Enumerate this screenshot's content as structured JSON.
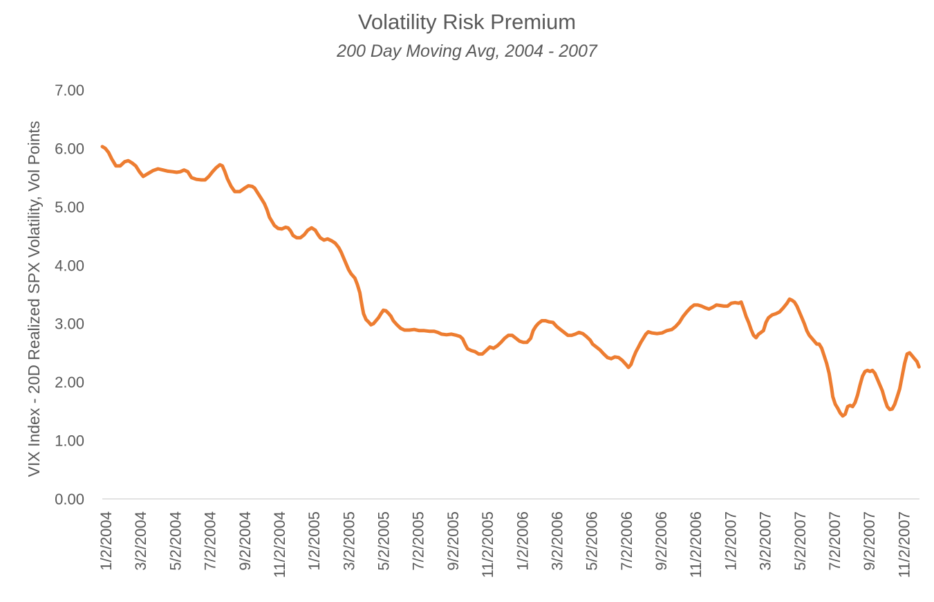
{
  "chart_data": {
    "type": "line",
    "title": "Volatility Risk Premium",
    "subtitle": "200 Day Moving Avg, 2004 - 2007",
    "xlabel": "",
    "ylabel": "VIX Index - 20D Realized SPX Volatility, Vol Points",
    "ylim": [
      0,
      7
    ],
    "yticks": [
      "0.00",
      "1.00",
      "2.00",
      "3.00",
      "4.00",
      "5.00",
      "6.00",
      "7.00"
    ],
    "xticks": [
      "1/2/2004",
      "3/2/2004",
      "5/2/2004",
      "7/2/2004",
      "9/2/2004",
      "11/2/2004",
      "1/2/2005",
      "3/2/2005",
      "5/2/2005",
      "7/2/2005",
      "9/2/2005",
      "11/2/2005",
      "1/2/2006",
      "3/2/2006",
      "5/2/2006",
      "7/2/2006",
      "9/2/2006",
      "11/2/2006",
      "1/2/2007",
      "3/2/2007",
      "5/2/2007",
      "7/2/2007",
      "9/2/2007",
      "11/2/2007"
    ],
    "grid": false,
    "line_color": "#ED7D31",
    "series": [
      {
        "values": [
          [
            0.0,
            6.03
          ],
          [
            0.12,
            6.0
          ],
          [
            0.25,
            5.93
          ],
          [
            0.38,
            5.82
          ],
          [
            0.55,
            5.7
          ],
          [
            0.72,
            5.7
          ],
          [
            0.9,
            5.77
          ],
          [
            1.05,
            5.79
          ],
          [
            1.2,
            5.75
          ],
          [
            1.35,
            5.7
          ],
          [
            1.5,
            5.6
          ],
          [
            1.65,
            5.52
          ],
          [
            1.85,
            5.57
          ],
          [
            2.05,
            5.62
          ],
          [
            2.25,
            5.65
          ],
          [
            2.45,
            5.63
          ],
          [
            2.65,
            5.61
          ],
          [
            2.85,
            5.6
          ],
          [
            3.0,
            5.59
          ],
          [
            3.15,
            5.6
          ],
          [
            3.3,
            5.63
          ],
          [
            3.45,
            5.6
          ],
          [
            3.6,
            5.5
          ],
          [
            3.8,
            5.47
          ],
          [
            4.0,
            5.46
          ],
          [
            4.15,
            5.46
          ],
          [
            4.3,
            5.52
          ],
          [
            4.45,
            5.6
          ],
          [
            4.6,
            5.67
          ],
          [
            4.75,
            5.72
          ],
          [
            4.85,
            5.7
          ],
          [
            4.95,
            5.6
          ],
          [
            5.05,
            5.48
          ],
          [
            5.2,
            5.35
          ],
          [
            5.35,
            5.26
          ],
          [
            5.55,
            5.26
          ],
          [
            5.75,
            5.32
          ],
          [
            5.9,
            5.36
          ],
          [
            6.05,
            5.35
          ],
          [
            6.15,
            5.32
          ],
          [
            6.3,
            5.22
          ],
          [
            6.45,
            5.12
          ],
          [
            6.55,
            5.05
          ],
          [
            6.65,
            4.95
          ],
          [
            6.75,
            4.82
          ],
          [
            6.85,
            4.75
          ],
          [
            6.95,
            4.68
          ],
          [
            7.1,
            4.63
          ],
          [
            7.25,
            4.62
          ],
          [
            7.4,
            4.65
          ],
          [
            7.5,
            4.64
          ],
          [
            7.6,
            4.59
          ],
          [
            7.7,
            4.51
          ],
          [
            7.85,
            4.47
          ],
          [
            8.0,
            4.47
          ],
          [
            8.15,
            4.52
          ],
          [
            8.3,
            4.6
          ],
          [
            8.45,
            4.64
          ],
          [
            8.6,
            4.6
          ],
          [
            8.7,
            4.53
          ],
          [
            8.8,
            4.47
          ],
          [
            8.95,
            4.43
          ],
          [
            9.1,
            4.45
          ],
          [
            9.25,
            4.42
          ],
          [
            9.4,
            4.38
          ],
          [
            9.55,
            4.3
          ],
          [
            9.65,
            4.22
          ],
          [
            9.75,
            4.12
          ],
          [
            9.85,
            4.02
          ],
          [
            9.95,
            3.92
          ],
          [
            10.05,
            3.85
          ],
          [
            10.2,
            3.78
          ],
          [
            10.3,
            3.67
          ],
          [
            10.4,
            3.53
          ],
          [
            10.45,
            3.4
          ],
          [
            10.5,
            3.28
          ],
          [
            10.55,
            3.17
          ],
          [
            10.65,
            3.07
          ],
          [
            10.75,
            3.03
          ],
          [
            10.85,
            2.98
          ],
          [
            10.95,
            3.0
          ],
          [
            11.05,
            3.05
          ],
          [
            11.15,
            3.1
          ],
          [
            11.25,
            3.17
          ],
          [
            11.35,
            3.23
          ],
          [
            11.45,
            3.22
          ],
          [
            11.55,
            3.18
          ],
          [
            11.65,
            3.13
          ],
          [
            11.75,
            3.05
          ],
          [
            11.9,
            2.98
          ],
          [
            12.05,
            2.92
          ],
          [
            12.2,
            2.89
          ],
          [
            12.4,
            2.89
          ],
          [
            12.6,
            2.9
          ],
          [
            12.8,
            2.88
          ],
          [
            13.0,
            2.88
          ],
          [
            13.2,
            2.87
          ],
          [
            13.4,
            2.87
          ],
          [
            13.55,
            2.85
          ],
          [
            13.7,
            2.82
          ],
          [
            13.9,
            2.81
          ],
          [
            14.1,
            2.82
          ],
          [
            14.3,
            2.8
          ],
          [
            14.45,
            2.78
          ],
          [
            14.55,
            2.74
          ],
          [
            14.65,
            2.65
          ],
          [
            14.75,
            2.57
          ],
          [
            14.9,
            2.54
          ],
          [
            15.05,
            2.52
          ],
          [
            15.2,
            2.48
          ],
          [
            15.35,
            2.48
          ],
          [
            15.5,
            2.54
          ],
          [
            15.65,
            2.6
          ],
          [
            15.8,
            2.58
          ],
          [
            15.95,
            2.62
          ],
          [
            16.1,
            2.68
          ],
          [
            16.25,
            2.75
          ],
          [
            16.4,
            2.8
          ],
          [
            16.55,
            2.8
          ],
          [
            16.7,
            2.75
          ],
          [
            16.85,
            2.7
          ],
          [
            17.0,
            2.68
          ],
          [
            17.15,
            2.68
          ],
          [
            17.3,
            2.75
          ],
          [
            17.4,
            2.88
          ],
          [
            17.5,
            2.95
          ],
          [
            17.6,
            3.0
          ],
          [
            17.75,
            3.05
          ],
          [
            17.9,
            3.05
          ],
          [
            18.05,
            3.03
          ],
          [
            18.2,
            3.02
          ],
          [
            18.35,
            2.95
          ],
          [
            18.5,
            2.9
          ],
          [
            18.65,
            2.85
          ],
          [
            18.8,
            2.8
          ],
          [
            18.95,
            2.8
          ],
          [
            19.1,
            2.82
          ],
          [
            19.25,
            2.85
          ],
          [
            19.4,
            2.83
          ],
          [
            19.55,
            2.78
          ],
          [
            19.7,
            2.72
          ],
          [
            19.8,
            2.65
          ],
          [
            19.95,
            2.6
          ],
          [
            20.1,
            2.55
          ],
          [
            20.25,
            2.48
          ],
          [
            20.4,
            2.42
          ],
          [
            20.55,
            2.4
          ],
          [
            20.7,
            2.43
          ],
          [
            20.85,
            2.42
          ],
          [
            21.0,
            2.37
          ],
          [
            21.15,
            2.3
          ],
          [
            21.25,
            2.25
          ],
          [
            21.35,
            2.3
          ],
          [
            21.45,
            2.42
          ],
          [
            21.55,
            2.52
          ],
          [
            21.65,
            2.6
          ],
          [
            21.75,
            2.68
          ],
          [
            21.85,
            2.75
          ],
          [
            21.95,
            2.82
          ],
          [
            22.05,
            2.86
          ],
          [
            22.2,
            2.84
          ],
          [
            22.4,
            2.83
          ],
          [
            22.6,
            2.84
          ],
          [
            22.8,
            2.88
          ],
          [
            23.0,
            2.9
          ],
          [
            23.15,
            2.95
          ],
          [
            23.3,
            3.02
          ],
          [
            23.45,
            3.12
          ],
          [
            23.6,
            3.2
          ],
          [
            23.75,
            3.27
          ],
          [
            23.9,
            3.32
          ],
          [
            24.05,
            3.32
          ],
          [
            24.2,
            3.3
          ],
          [
            24.35,
            3.27
          ],
          [
            24.5,
            3.25
          ],
          [
            24.65,
            3.28
          ],
          [
            24.8,
            3.32
          ],
          [
            24.95,
            3.31
          ],
          [
            25.1,
            3.3
          ],
          [
            25.25,
            3.3
          ],
          [
            25.4,
            3.35
          ],
          [
            25.55,
            3.36
          ],
          [
            25.7,
            3.35
          ],
          [
            25.8,
            3.37
          ],
          [
            25.9,
            3.25
          ],
          [
            26.0,
            3.12
          ],
          [
            26.1,
            3.02
          ],
          [
            26.2,
            2.9
          ],
          [
            26.3,
            2.8
          ],
          [
            26.4,
            2.76
          ],
          [
            26.5,
            2.82
          ],
          [
            26.6,
            2.85
          ],
          [
            26.7,
            2.88
          ],
          [
            26.8,
            3.02
          ],
          [
            26.9,
            3.1
          ],
          [
            27.05,
            3.15
          ],
          [
            27.2,
            3.17
          ],
          [
            27.35,
            3.2
          ],
          [
            27.5,
            3.27
          ],
          [
            27.65,
            3.35
          ],
          [
            27.75,
            3.42
          ],
          [
            27.85,
            3.4
          ],
          [
            27.95,
            3.37
          ],
          [
            28.05,
            3.3
          ],
          [
            28.15,
            3.2
          ],
          [
            28.25,
            3.1
          ],
          [
            28.35,
            3.0
          ],
          [
            28.45,
            2.88
          ],
          [
            28.55,
            2.8
          ],
          [
            28.65,
            2.75
          ],
          [
            28.75,
            2.7
          ],
          [
            28.85,
            2.65
          ],
          [
            28.95,
            2.65
          ],
          [
            29.05,
            2.58
          ],
          [
            29.15,
            2.45
          ],
          [
            29.25,
            2.32
          ],
          [
            29.35,
            2.15
          ],
          [
            29.45,
            1.9
          ],
          [
            29.5,
            1.75
          ],
          [
            29.6,
            1.62
          ],
          [
            29.7,
            1.55
          ],
          [
            29.8,
            1.47
          ],
          [
            29.9,
            1.42
          ],
          [
            30.0,
            1.45
          ],
          [
            30.1,
            1.58
          ],
          [
            30.2,
            1.6
          ],
          [
            30.3,
            1.58
          ],
          [
            30.4,
            1.65
          ],
          [
            30.5,
            1.78
          ],
          [
            30.6,
            1.95
          ],
          [
            30.7,
            2.1
          ],
          [
            30.8,
            2.18
          ],
          [
            30.9,
            2.2
          ],
          [
            31.0,
            2.18
          ],
          [
            31.1,
            2.2
          ],
          [
            31.2,
            2.15
          ],
          [
            31.3,
            2.05
          ],
          [
            31.4,
            1.95
          ],
          [
            31.5,
            1.85
          ],
          [
            31.6,
            1.7
          ],
          [
            31.7,
            1.58
          ],
          [
            31.8,
            1.53
          ],
          [
            31.9,
            1.54
          ],
          [
            32.0,
            1.62
          ],
          [
            32.1,
            1.75
          ],
          [
            32.2,
            1.88
          ],
          [
            32.3,
            2.1
          ],
          [
            32.4,
            2.32
          ],
          [
            32.5,
            2.48
          ],
          [
            32.6,
            2.5
          ],
          [
            32.7,
            2.45
          ],
          [
            32.8,
            2.4
          ],
          [
            32.9,
            2.35
          ],
          [
            32.98,
            2.26
          ]
        ]
      }
    ]
  }
}
